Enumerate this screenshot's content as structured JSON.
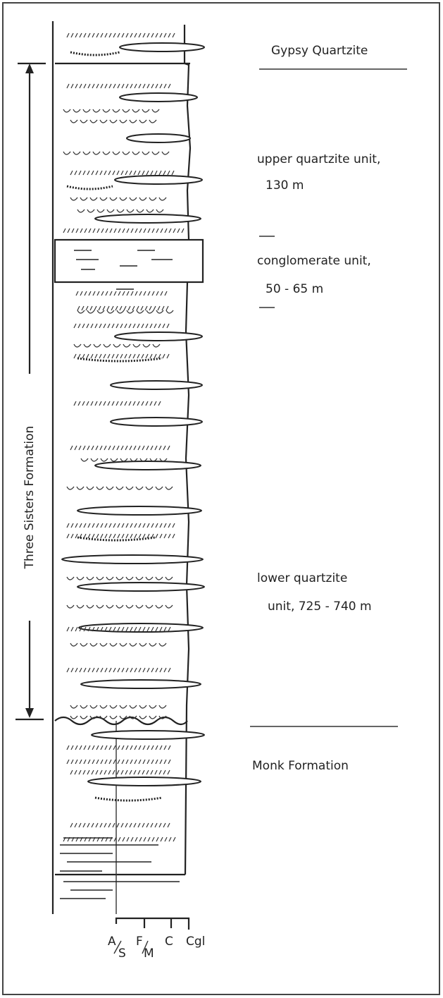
{
  "formation": "Three Sisters Formation",
  "units": [
    {
      "name": "Gypsy Quartzite"
    },
    {
      "name": "upper quartzite unit,",
      "thickness": "130 m"
    },
    {
      "name": "conglomerate unit,",
      "thickness": "50 - 65 m"
    },
    {
      "name": "lower quartzite",
      "thickness": "unit, 725 - 740 m"
    },
    {
      "name": "Monk Formation"
    }
  ],
  "scale": [
    {
      "top": "A",
      "bottom": "S"
    },
    {
      "top": "F",
      "bottom": "M"
    },
    {
      "top": "C"
    },
    {
      "top": "Cgl"
    }
  ]
}
